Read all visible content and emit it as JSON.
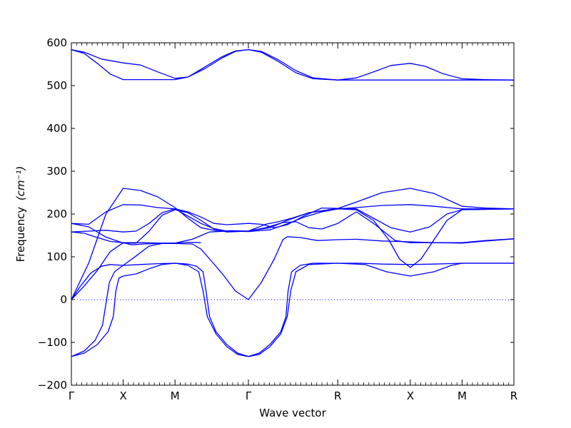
{
  "chart_data": {
    "type": "line",
    "xlabel": "Wave vector",
    "ylabel": "Frequency",
    "ylabel_unit": "(cm⁻¹)",
    "ylim": [
      -200,
      600
    ],
    "yticks": [
      -200,
      -100,
      0,
      100,
      200,
      300,
      400,
      500,
      600
    ],
    "grid": false,
    "line_color": "#0000ff",
    "zero_line": {
      "y": 0,
      "style": "dotted",
      "color": "#0000ff"
    },
    "xlim": [
      0,
      10.25
    ],
    "high_symmetry_points": [
      {
        "label": "Γ",
        "x": 0
      },
      {
        "label": "X",
        "x": 1.2
      },
      {
        "label": "M",
        "x": 2.4
      },
      {
        "label": "Γ",
        "x": 4.1
      },
      {
        "label": "R",
        "x": 6.17
      },
      {
        "label": "X",
        "x": 7.85
      },
      {
        "label": "M",
        "x": 9.05
      },
      {
        "label": "R",
        "x": 10.25
      }
    ],
    "series": [
      {
        "points": [
          [
            0,
            584
          ],
          [
            0.3,
            578
          ],
          [
            0.7,
            562
          ],
          [
            1.2,
            553
          ],
          [
            1.6,
            548
          ],
          [
            2.0,
            532
          ],
          [
            2.4,
            517
          ],
          [
            2.7,
            520
          ],
          [
            3.1,
            540
          ],
          [
            3.5,
            565
          ],
          [
            3.8,
            580
          ],
          [
            4.1,
            584
          ],
          [
            4.4,
            580
          ],
          [
            4.8,
            560
          ],
          [
            5.2,
            535
          ],
          [
            5.6,
            518
          ],
          [
            6.17,
            513
          ],
          [
            6.6,
            518
          ],
          [
            7.0,
            532
          ],
          [
            7.4,
            547
          ],
          [
            7.85,
            552
          ],
          [
            8.2,
            545
          ],
          [
            8.6,
            528
          ],
          [
            9.05,
            516
          ],
          [
            9.6,
            514
          ],
          [
            10.25,
            513
          ]
        ]
      },
      {
        "points": [
          [
            0,
            584
          ],
          [
            0.3,
            575
          ],
          [
            0.6,
            552
          ],
          [
            0.9,
            527
          ],
          [
            1.2,
            514
          ],
          [
            1.6,
            514
          ],
          [
            2.0,
            514
          ],
          [
            2.4,
            514
          ],
          [
            2.7,
            520
          ],
          [
            3.1,
            544
          ],
          [
            3.5,
            568
          ],
          [
            3.8,
            581
          ],
          [
            4.1,
            584
          ],
          [
            4.4,
            578
          ],
          [
            4.8,
            556
          ],
          [
            5.2,
            530
          ],
          [
            5.6,
            516
          ],
          [
            6.17,
            513
          ],
          [
            7.0,
            513
          ],
          [
            7.85,
            513
          ],
          [
            8.5,
            513
          ],
          [
            9.05,
            513
          ],
          [
            10.25,
            513
          ]
        ]
      },
      {
        "points": [
          [
            0,
            178
          ],
          [
            0.4,
            176
          ],
          [
            0.8,
            205
          ],
          [
            1.2,
            222
          ],
          [
            1.6,
            221
          ],
          [
            2.0,
            215
          ],
          [
            2.4,
            212
          ],
          [
            2.7,
            195
          ],
          [
            3.0,
            178
          ],
          [
            3.3,
            166
          ],
          [
            3.6,
            160
          ],
          [
            4.1,
            159
          ],
          [
            4.6,
            163
          ],
          [
            5.0,
            177
          ],
          [
            5.4,
            193
          ],
          [
            5.8,
            205
          ],
          [
            6.17,
            212
          ],
          [
            6.6,
            215
          ],
          [
            7.2,
            220
          ],
          [
            7.85,
            222
          ],
          [
            8.4,
            218
          ],
          [
            9.05,
            212
          ],
          [
            9.6,
            212
          ],
          [
            10.25,
            212
          ]
        ]
      },
      {
        "points": [
          [
            0,
            0
          ],
          [
            0.4,
            85
          ],
          [
            0.8,
            200
          ],
          [
            1.2,
            260
          ],
          [
            1.6,
            255
          ],
          [
            2.0,
            240
          ],
          [
            2.4,
            215
          ],
          [
            2.7,
            190
          ],
          [
            3.0,
            168
          ],
          [
            3.4,
            160
          ],
          [
            3.7,
            161
          ],
          [
            4.1,
            160
          ],
          [
            4.6,
            168
          ],
          [
            5.0,
            185
          ],
          [
            5.5,
            203
          ],
          [
            6.17,
            213
          ],
          [
            6.6,
            228
          ],
          [
            7.2,
            250
          ],
          [
            7.85,
            260
          ],
          [
            8.4,
            248
          ],
          [
            9.05,
            218
          ],
          [
            9.6,
            214
          ],
          [
            10.25,
            212
          ]
        ]
      },
      {
        "points": [
          [
            0,
            158
          ],
          [
            0.4,
            160
          ],
          [
            0.8,
            162
          ],
          [
            1.2,
            158
          ],
          [
            1.5,
            160
          ],
          [
            1.8,
            178
          ],
          [
            2.1,
            203
          ],
          [
            2.4,
            212
          ],
          [
            2.7,
            205
          ],
          [
            3.0,
            193
          ],
          [
            3.3,
            178
          ],
          [
            3.6,
            175
          ],
          [
            4.1,
            178
          ],
          [
            4.4,
            176
          ],
          [
            4.7,
            168
          ],
          [
            5.0,
            175
          ],
          [
            5.4,
            196
          ],
          [
            5.8,
            214
          ],
          [
            6.17,
            213
          ],
          [
            6.6,
            212
          ],
          [
            7.0,
            190
          ],
          [
            7.4,
            168
          ],
          [
            7.85,
            158
          ],
          [
            8.3,
            170
          ],
          [
            8.7,
            200
          ],
          [
            9.05,
            210
          ],
          [
            10.25,
            212
          ]
        ]
      },
      {
        "points": [
          [
            0,
            178
          ],
          [
            0.4,
            170
          ],
          [
            0.8,
            146
          ],
          [
            1.2,
            132
          ],
          [
            1.5,
            132
          ],
          [
            1.8,
            160
          ],
          [
            2.1,
            197
          ],
          [
            2.4,
            210
          ],
          [
            2.7,
            203
          ],
          [
            3.0,
            185
          ],
          [
            3.3,
            165
          ],
          [
            3.6,
            158
          ],
          [
            4.1,
            160
          ],
          [
            4.5,
            176
          ],
          [
            4.8,
            182
          ],
          [
            5.1,
            190
          ],
          [
            5.5,
            203
          ],
          [
            6.17,
            212
          ],
          [
            6.6,
            210
          ],
          [
            7.0,
            185
          ],
          [
            7.35,
            140
          ],
          [
            7.6,
            95
          ],
          [
            7.85,
            75
          ],
          [
            8.1,
            95
          ],
          [
            8.4,
            140
          ],
          [
            8.7,
            185
          ],
          [
            9.05,
            210
          ],
          [
            10.25,
            212
          ]
        ]
      },
      {
        "points": [
          [
            0,
            0
          ],
          [
            0.3,
            32
          ],
          [
            0.6,
            68
          ],
          [
            0.9,
            112
          ],
          [
            1.2,
            133
          ],
          [
            1.6,
            133
          ],
          [
            2.0,
            132
          ],
          [
            2.4,
            132
          ],
          [
            2.8,
            141
          ],
          [
            3.2,
            158
          ],
          [
            3.6,
            160
          ],
          [
            4.1,
            160
          ],
          [
            4.5,
            168
          ],
          [
            4.9,
            180
          ],
          [
            5.2,
            182
          ],
          [
            5.5,
            168
          ],
          [
            5.8,
            165
          ],
          [
            6.17,
            178
          ],
          [
            6.6,
            205
          ],
          [
            7.0,
            178
          ],
          [
            7.5,
            138
          ],
          [
            7.85,
            133
          ],
          [
            8.5,
            133
          ],
          [
            9.05,
            133
          ],
          [
            9.6,
            138
          ],
          [
            10.25,
            142
          ]
        ]
      },
      {
        "points": [
          [
            0,
            158
          ],
          [
            0.3,
            155
          ],
          [
            0.6,
            145
          ],
          [
            0.9,
            136
          ],
          [
            1.2,
            133
          ],
          [
            1.4,
            128
          ],
          [
            1.7,
            130
          ],
          [
            2.0,
            131
          ],
          [
            2.4,
            131
          ],
          [
            2.8,
            130
          ],
          [
            3.0,
            118
          ],
          [
            3.2,
            95
          ],
          [
            3.5,
            60
          ],
          [
            3.8,
            20
          ],
          [
            4.1,
            0
          ],
          [
            4.4,
            40
          ],
          [
            4.7,
            95
          ],
          [
            4.9,
            140
          ],
          [
            5.0,
            147
          ],
          [
            5.3,
            145
          ],
          [
            5.7,
            138
          ],
          [
            6.17,
            140
          ],
          [
            6.6,
            141
          ],
          [
            7.2,
            137
          ],
          [
            7.85,
            135
          ],
          [
            8.4,
            133
          ],
          [
            9.05,
            132
          ],
          [
            9.6,
            137
          ],
          [
            10.25,
            142
          ]
        ]
      },
      {
        "points": [
          [
            0,
            0
          ],
          [
            0.2,
            30
          ],
          [
            0.45,
            62
          ],
          [
            0.7,
            78
          ],
          [
            0.9,
            82
          ],
          [
            1.2,
            80
          ],
          [
            1.6,
            82
          ],
          [
            2.0,
            84
          ],
          [
            2.4,
            85
          ],
          [
            2.7,
            83
          ],
          [
            2.9,
            78
          ],
          [
            3.05,
            65
          ],
          [
            3.12,
            20
          ],
          [
            3.2,
            -40
          ],
          [
            3.35,
            -75
          ],
          [
            3.6,
            -105
          ],
          [
            3.85,
            -125
          ],
          [
            4.1,
            -133
          ],
          [
            4.35,
            -125
          ],
          [
            4.6,
            -105
          ],
          [
            4.85,
            -75
          ],
          [
            4.97,
            -40
          ],
          [
            5.02,
            20
          ],
          [
            5.1,
            65
          ],
          [
            5.3,
            80
          ],
          [
            5.6,
            85
          ],
          [
            6.17,
            85
          ],
          [
            6.7,
            85
          ],
          [
            7.2,
            83
          ],
          [
            7.85,
            82
          ],
          [
            8.4,
            83
          ],
          [
            9.05,
            85
          ],
          [
            10.25,
            85
          ]
        ]
      },
      {
        "points": [
          [
            0,
            -133
          ],
          [
            0.3,
            -125
          ],
          [
            0.6,
            -105
          ],
          [
            0.85,
            -75
          ],
          [
            0.97,
            -40
          ],
          [
            1.03,
            20
          ],
          [
            1.1,
            50
          ],
          [
            1.2,
            55
          ],
          [
            1.5,
            60
          ],
          [
            1.8,
            72
          ],
          [
            2.1,
            82
          ],
          [
            2.4,
            85
          ],
          [
            2.7,
            80
          ],
          [
            2.95,
            65
          ],
          [
            3.05,
            20
          ],
          [
            3.15,
            -40
          ],
          [
            3.35,
            -80
          ],
          [
            3.6,
            -110
          ],
          [
            3.85,
            -128
          ],
          [
            4.1,
            -133
          ],
          [
            4.35,
            -128
          ],
          [
            4.6,
            -110
          ],
          [
            4.85,
            -80
          ],
          [
            5.0,
            -40
          ],
          [
            5.08,
            20
          ],
          [
            5.2,
            65
          ],
          [
            5.5,
            82
          ],
          [
            6.17,
            85
          ],
          [
            6.8,
            82
          ],
          [
            7.3,
            65
          ],
          [
            7.85,
            55
          ],
          [
            8.4,
            65
          ],
          [
            8.8,
            80
          ],
          [
            9.05,
            85
          ],
          [
            10.25,
            85
          ]
        ]
      },
      {
        "points": [
          [
            0,
            -133
          ],
          [
            0.3,
            -120
          ],
          [
            0.55,
            -95
          ],
          [
            0.72,
            -60
          ],
          [
            0.8,
            -10
          ],
          [
            0.88,
            40
          ],
          [
            1.0,
            65
          ],
          [
            1.2,
            80
          ],
          [
            1.5,
            102
          ],
          [
            1.8,
            125
          ],
          [
            2.1,
            131
          ],
          [
            2.4,
            132
          ],
          [
            2.7,
            134
          ],
          [
            3.0,
            133
          ]
        ]
      }
    ]
  }
}
